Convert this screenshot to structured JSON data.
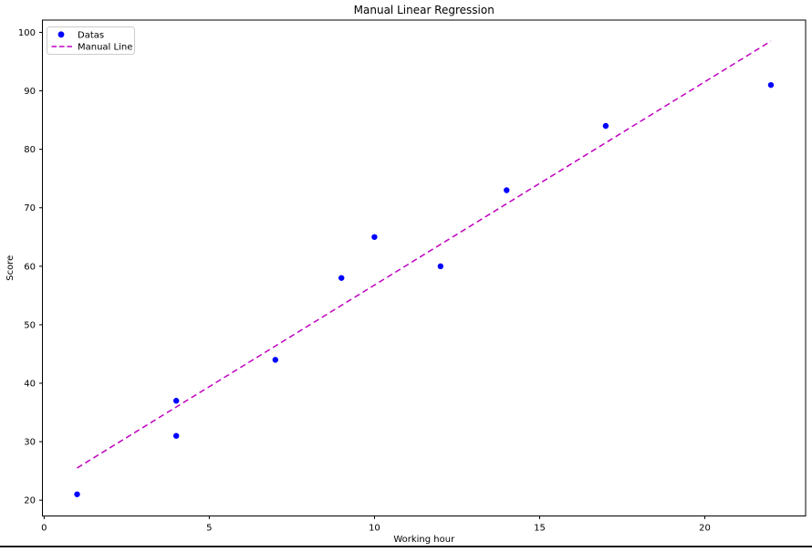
{
  "figure": {
    "background": "#ffffff"
  },
  "chart_data": {
    "type": "scatter",
    "title": "Manual Linear Regression",
    "xlabel": "Working hour",
    "ylabel": "Score",
    "series": [
      {
        "name": "Datas",
        "kind": "scatter",
        "color": "#0000ff",
        "x": [
          1,
          4,
          4,
          7,
          9,
          10,
          12,
          14,
          17,
          22
        ],
        "y": [
          21,
          31,
          37,
          44,
          58,
          65,
          60,
          73,
          84,
          91
        ]
      },
      {
        "name": "Manual Line",
        "kind": "line",
        "style": "dashed",
        "color": "#bf00bf",
        "x": [
          1,
          22
        ],
        "y": [
          25.5,
          98.5
        ]
      }
    ],
    "xlim": [
      -0.05,
      23.05
    ],
    "ylim": [
      17.3,
      102.1
    ],
    "xticks": [
      0,
      5,
      10,
      15,
      20
    ],
    "yticks": [
      20,
      30,
      40,
      50,
      60,
      70,
      80,
      90,
      100
    ],
    "grid": false,
    "legend_position": "upper left"
  }
}
